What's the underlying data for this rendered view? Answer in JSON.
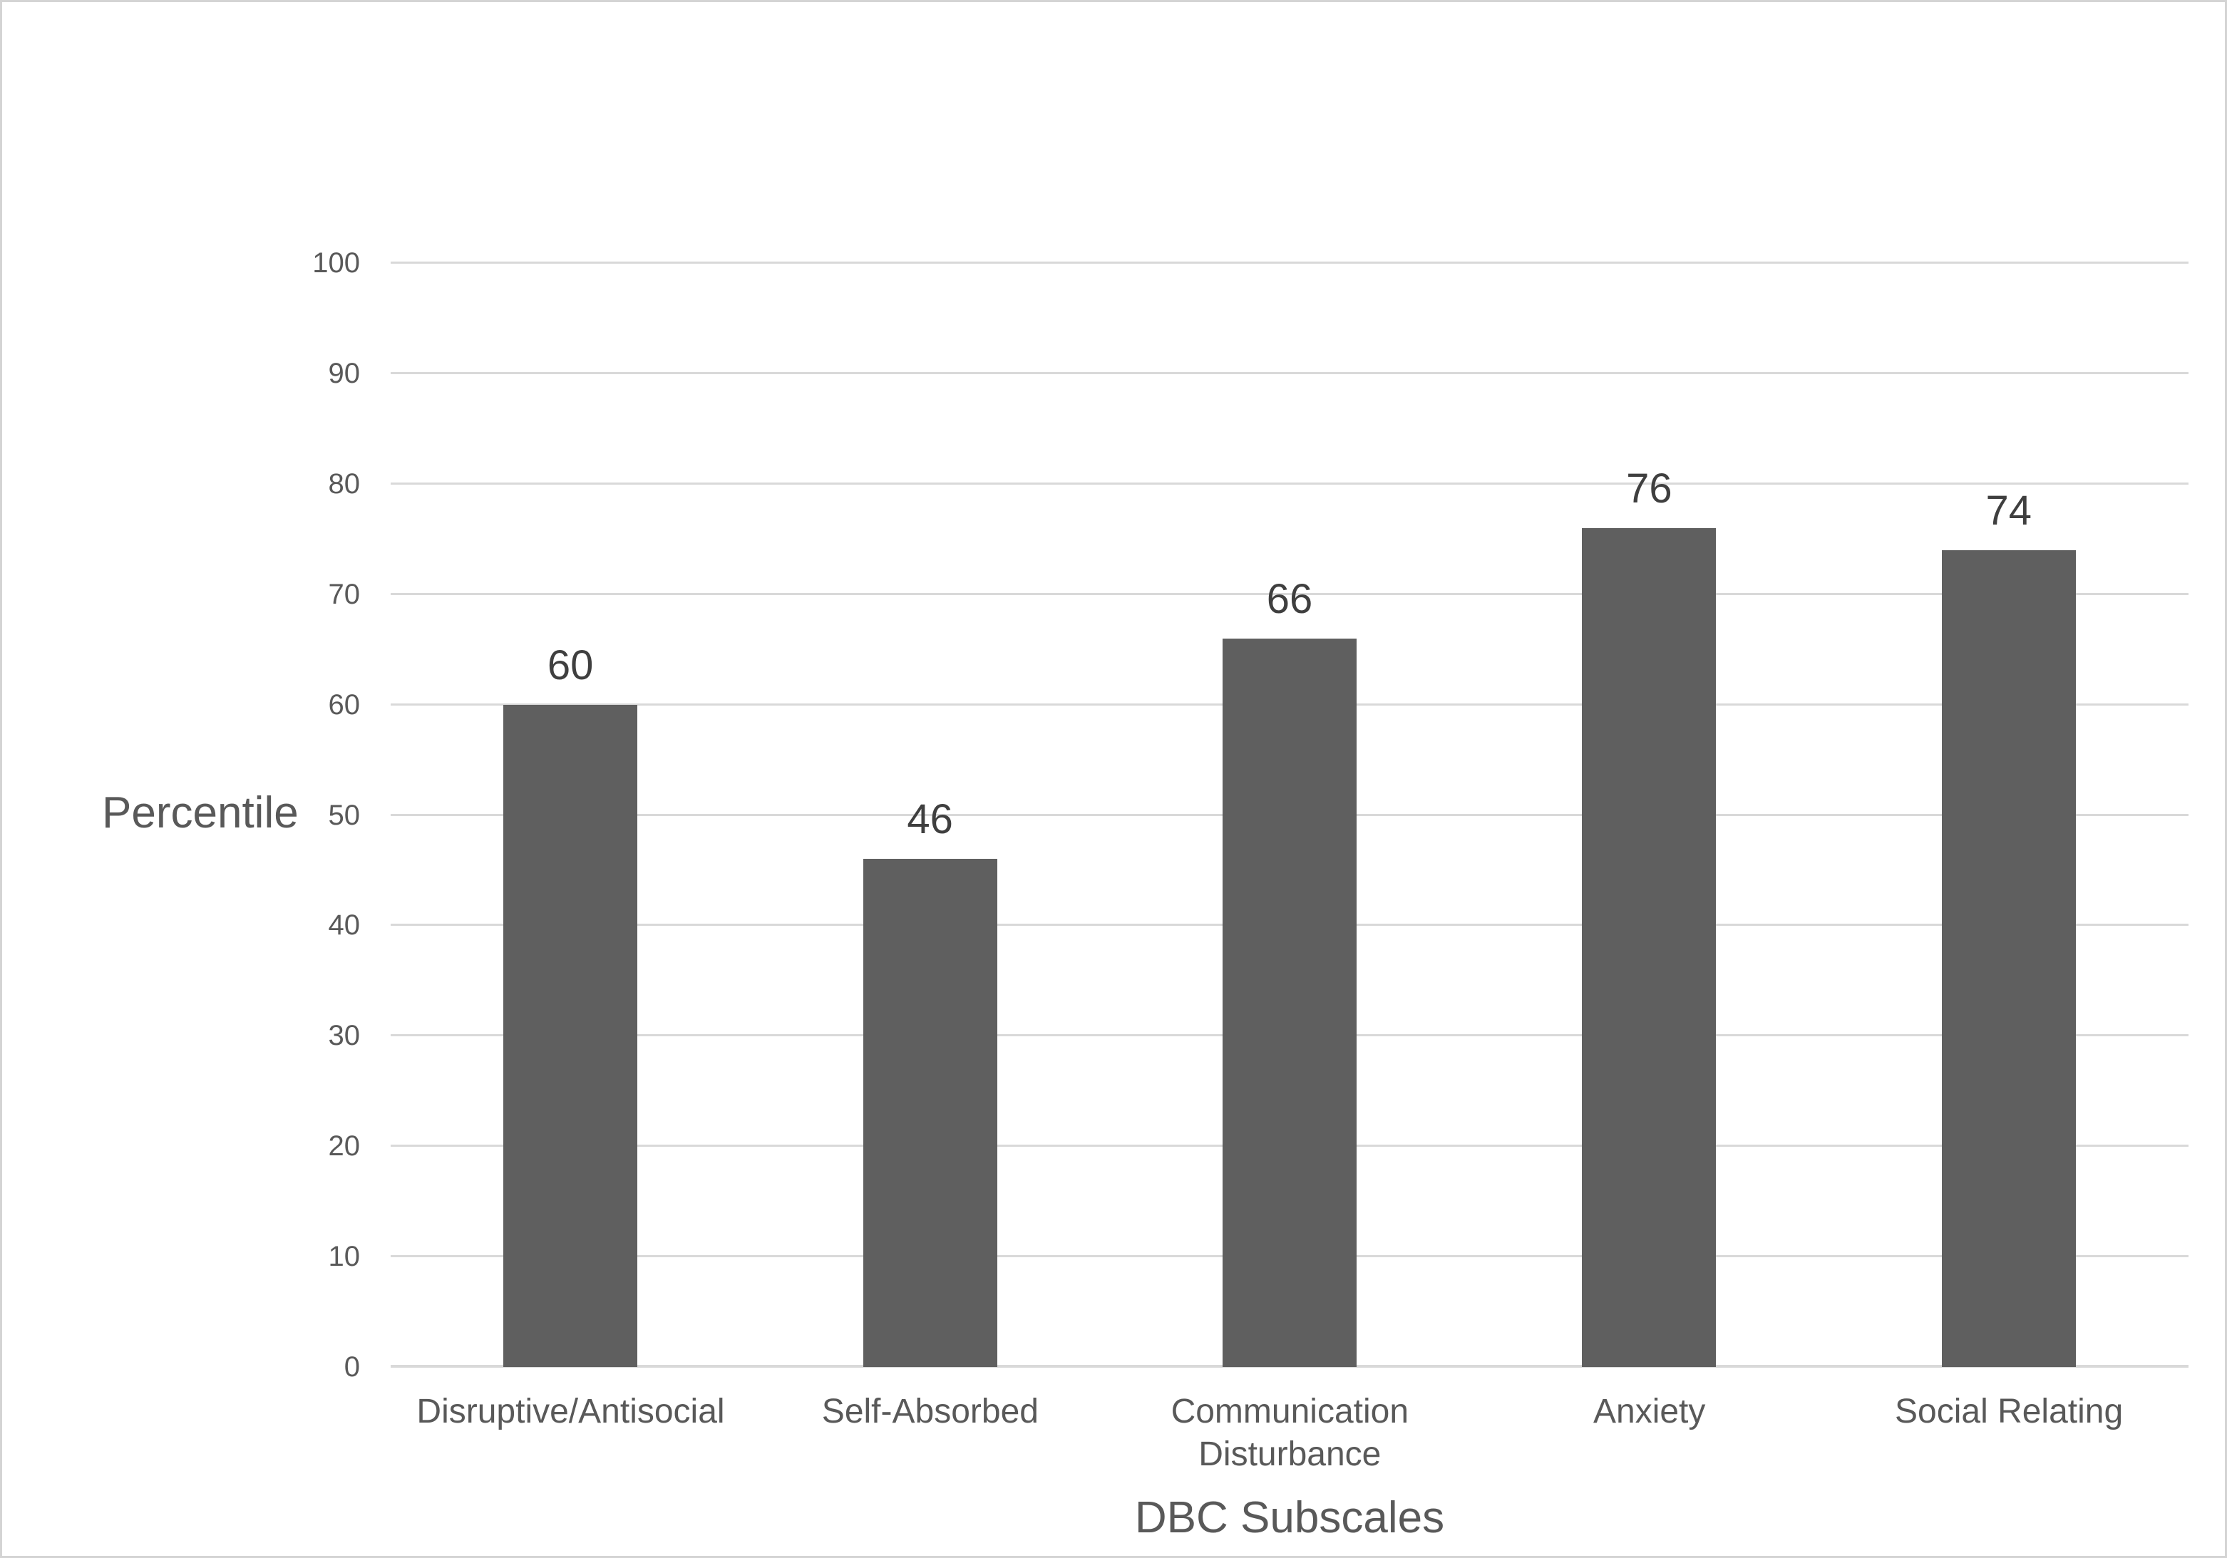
{
  "chart_data": {
    "type": "bar",
    "title": "",
    "categories": [
      "Disruptive/Antisocial",
      "Self-Absorbed",
      "Communication Disturbance",
      "Anxiety",
      "Social Relating"
    ],
    "values": [
      60,
      46,
      66,
      76,
      74
    ],
    "data_labels": [
      "60",
      "46",
      "66",
      "76",
      "74"
    ],
    "xlabel": "DBC Subscales",
    "ylabel": "Percentile",
    "ylim": [
      0,
      100
    ],
    "yticks": [
      0,
      10,
      20,
      30,
      40,
      50,
      60,
      70,
      80,
      90,
      100
    ],
    "grid": "horizontal",
    "legend": "none",
    "bar_color": "#5f5f5f",
    "gridline_color": "#d9d9d9",
    "axis_text_color": "#595959",
    "data_label_color": "#3f3f3f"
  }
}
